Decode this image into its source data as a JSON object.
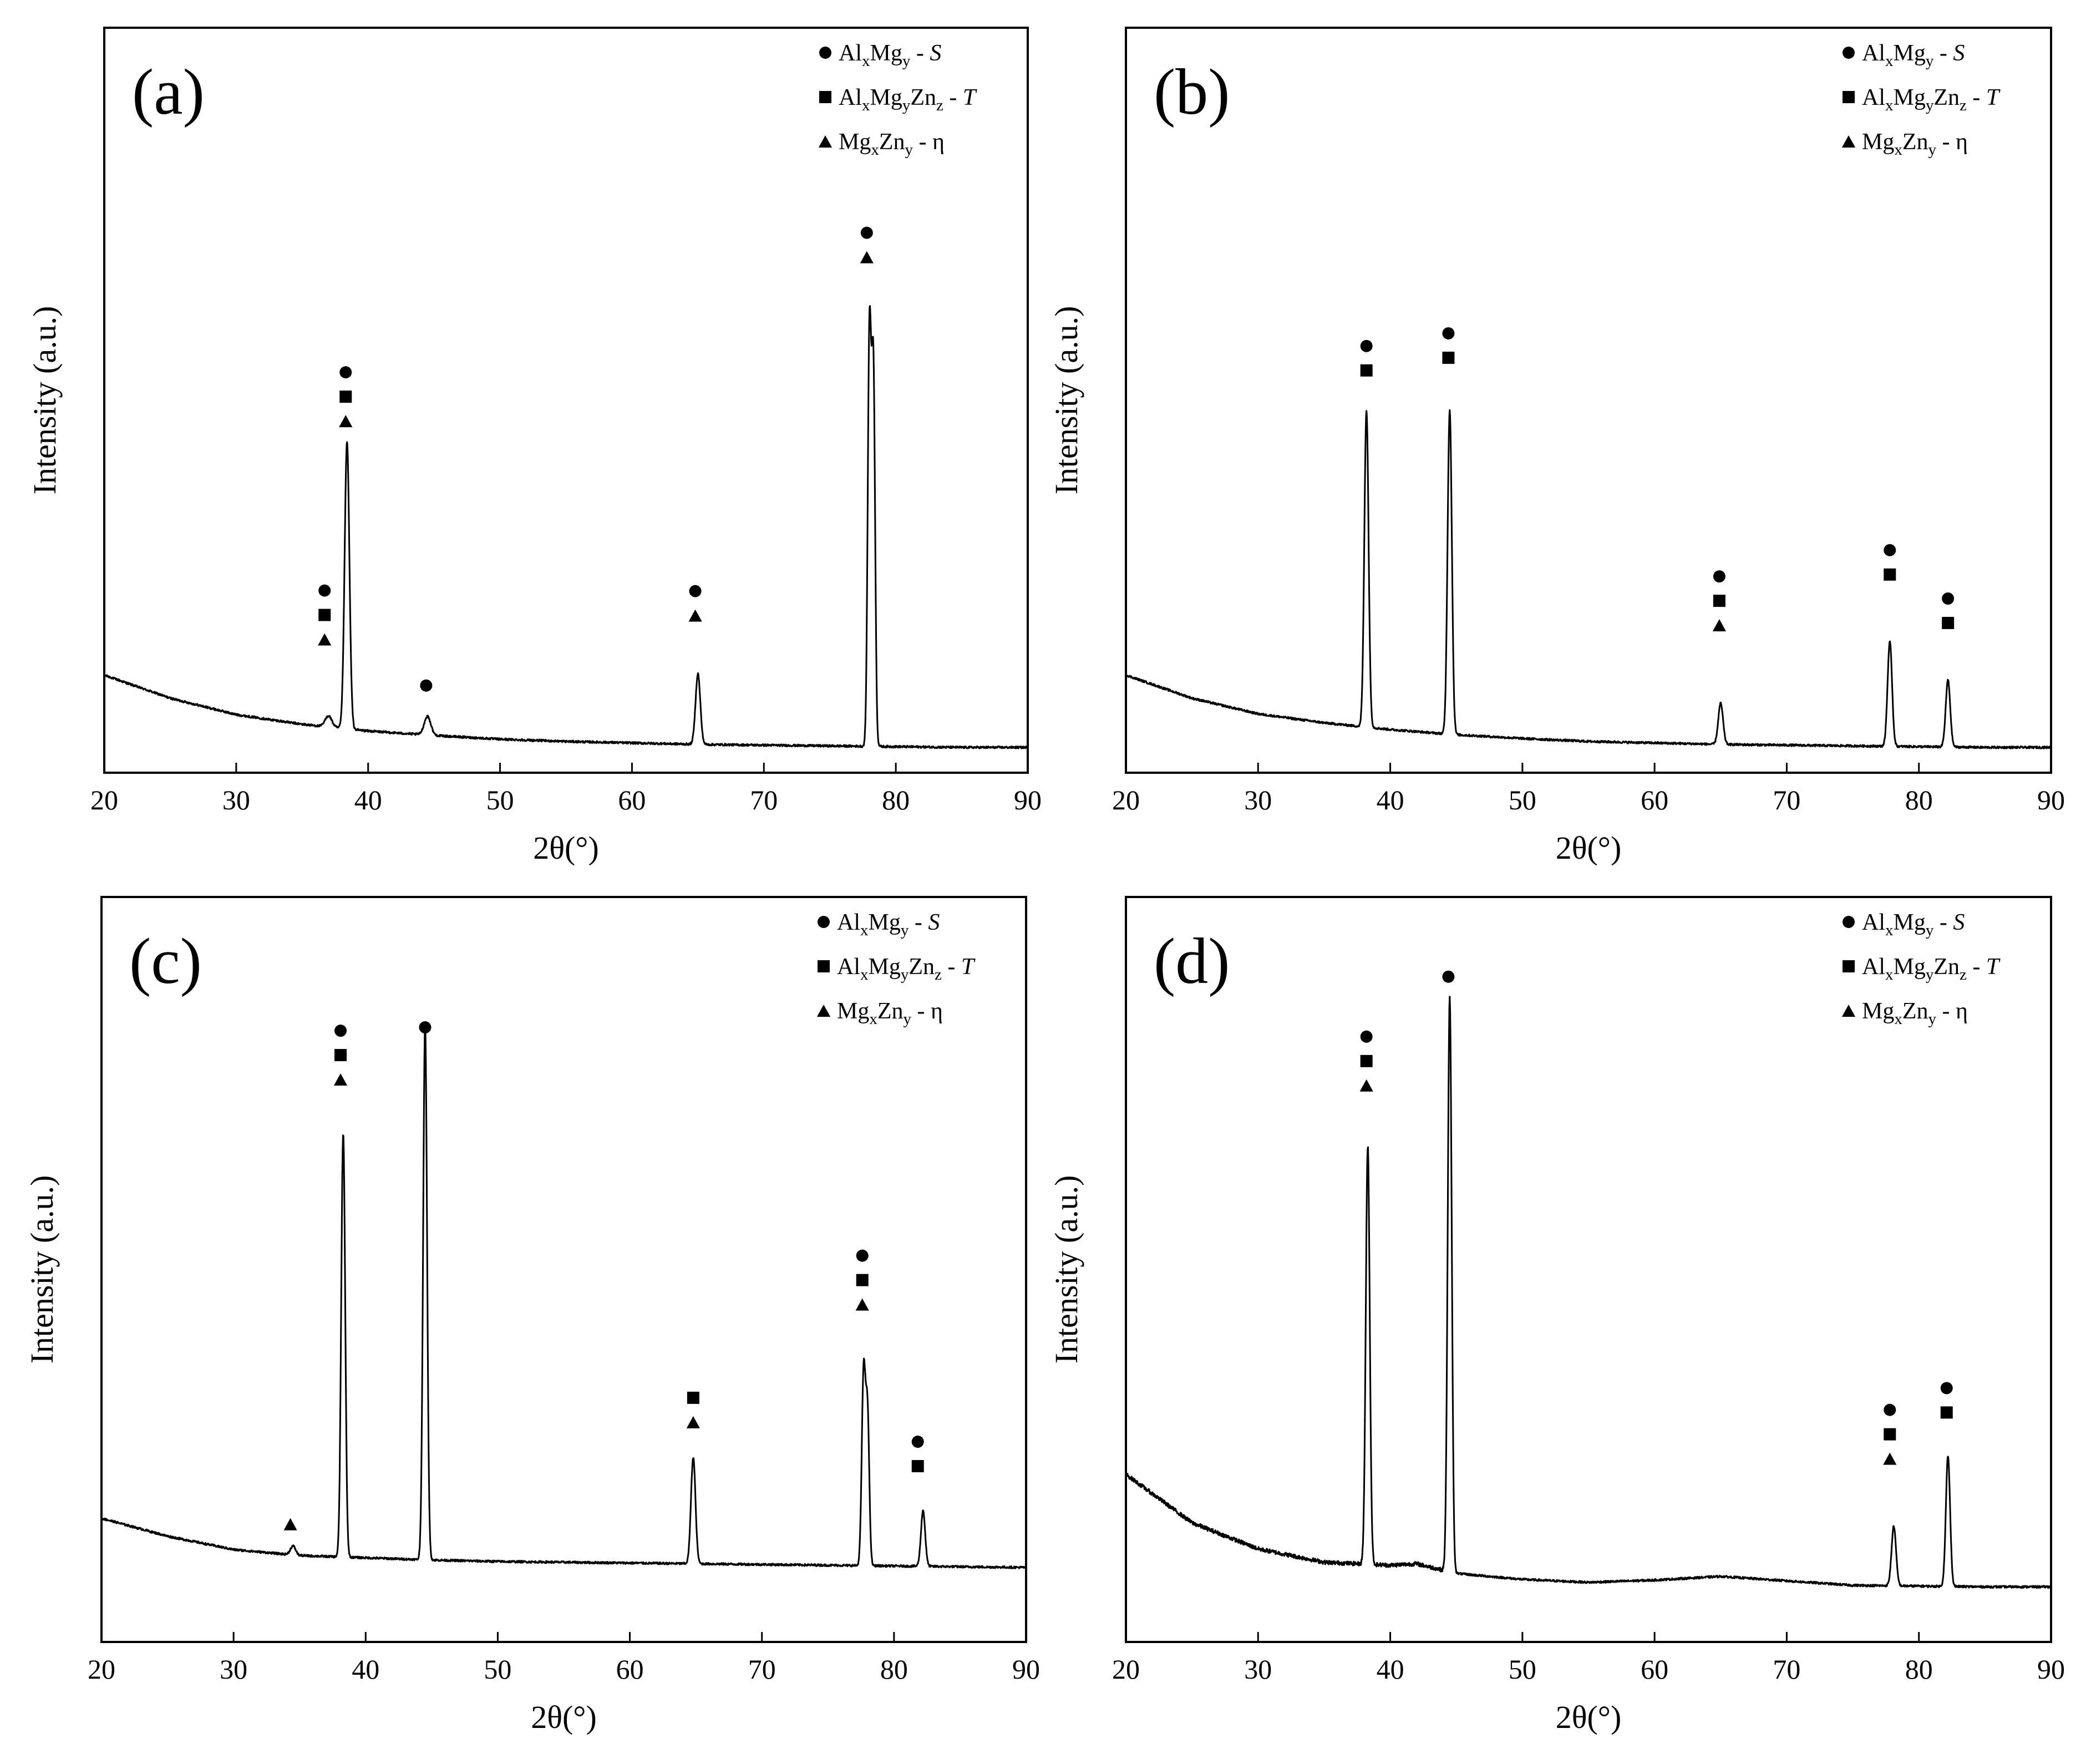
{
  "figure": {
    "legend": [
      {
        "marker": "circle",
        "parts": [
          [
            "Al",
            ""
          ],
          [
            "x",
            "sub"
          ],
          [
            "Mg",
            ""
          ],
          [
            "y",
            "sub"
          ],
          [
            " - ",
            ""
          ],
          [
            "S",
            "italic"
          ]
        ]
      },
      {
        "marker": "square",
        "parts": [
          [
            "Al",
            ""
          ],
          [
            "x",
            "sub"
          ],
          [
            "Mg",
            ""
          ],
          [
            "y",
            "sub"
          ],
          [
            "Zn",
            ""
          ],
          [
            "z",
            "sub"
          ],
          [
            " - ",
            ""
          ],
          [
            "T",
            "italic"
          ]
        ]
      },
      {
        "marker": "triangle",
        "parts": [
          [
            "Mg",
            ""
          ],
          [
            "x",
            "sub"
          ],
          [
            "Zn",
            ""
          ],
          [
            "y",
            "sub"
          ],
          [
            " - η",
            ""
          ]
        ]
      }
    ],
    "line_color": "#000000"
  },
  "chart_data": [
    {
      "type": "line",
      "panel_label": "(a)",
      "xlabel": "2θ(°)",
      "ylabel": "Intensity (a.u.)",
      "xlim": [
        20,
        90
      ],
      "ylim": [
        0,
        100
      ],
      "xticks": [
        20,
        30,
        40,
        50,
        60,
        70,
        80,
        90
      ],
      "yticks": [],
      "baseline": [
        [
          20,
          13.1
        ],
        [
          25,
          10.0
        ],
        [
          30,
          7.8
        ],
        [
          35,
          6.5
        ],
        [
          40,
          5.6
        ],
        [
          45,
          5.0
        ],
        [
          50,
          4.5
        ],
        [
          55,
          4.2
        ],
        [
          60,
          4.0
        ],
        [
          65,
          3.8
        ],
        [
          70,
          3.7
        ],
        [
          75,
          3.6
        ],
        [
          80,
          3.5
        ],
        [
          85,
          3.4
        ],
        [
          90,
          3.4
        ]
      ],
      "peaks": [
        {
          "x": 37.0,
          "height": 1.5,
          "width": 0.25
        },
        {
          "x": 38.4,
          "height": 38.5,
          "width": 0.18
        },
        {
          "x": 44.5,
          "height": 2.5,
          "width": 0.25
        },
        {
          "x": 65.0,
          "height": 9.5,
          "width": 0.18
        },
        {
          "x": 78.0,
          "height": 55.0,
          "width": 0.13
        },
        {
          "x": 78.3,
          "height": 50.0,
          "width": 0.13
        }
      ],
      "phase_markers": [
        {
          "x": 36.7,
          "y": 17.9,
          "markers": [
            "circle",
            "square",
            "triangle"
          ]
        },
        {
          "x": 38.3,
          "y": 47.2,
          "markers": [
            "circle",
            "square",
            "triangle"
          ]
        },
        {
          "x": 44.4,
          "y": 11.7,
          "markers": [
            "circle"
          ]
        },
        {
          "x": 64.8,
          "y": 21.1,
          "markers": [
            "circle",
            "triangle"
          ]
        },
        {
          "x": 77.8,
          "y": 69.2,
          "markers": [
            "circle",
            "triangle"
          ]
        }
      ]
    },
    {
      "type": "line",
      "panel_label": "(b)",
      "xlabel": "2θ(°)",
      "ylabel": "Intensity (a.u.)",
      "xlim": [
        20,
        90
      ],
      "ylim": [
        0,
        100
      ],
      "xticks": [
        20,
        30,
        40,
        50,
        60,
        70,
        80,
        90
      ],
      "yticks": [],
      "baseline": [
        [
          20,
          13.1
        ],
        [
          25,
          10.0
        ],
        [
          30,
          7.9
        ],
        [
          35,
          6.7
        ],
        [
          40,
          5.8
        ],
        [
          45,
          5.1
        ],
        [
          50,
          4.6
        ],
        [
          55,
          4.2
        ],
        [
          60,
          4.0
        ],
        [
          65,
          3.8
        ],
        [
          70,
          3.7
        ],
        [
          75,
          3.6
        ],
        [
          80,
          3.5
        ],
        [
          85,
          3.4
        ],
        [
          90,
          3.4
        ]
      ],
      "peaks": [
        {
          "x": 38.2,
          "height": 42.5,
          "width": 0.16
        },
        {
          "x": 44.5,
          "height": 43.5,
          "width": 0.16
        },
        {
          "x": 65.0,
          "height": 5.5,
          "width": 0.18
        },
        {
          "x": 77.8,
          "height": 14.0,
          "width": 0.17
        },
        {
          "x": 82.2,
          "height": 9.0,
          "width": 0.17
        }
      ],
      "phase_markers": [
        {
          "x": 38.2,
          "y": 54.0,
          "markers": [
            "circle",
            "square"
          ]
        },
        {
          "x": 44.4,
          "y": 55.7,
          "markers": [
            "circle",
            "square"
          ]
        },
        {
          "x": 64.9,
          "y": 19.8,
          "markers": [
            "circle",
            "square",
            "triangle"
          ]
        },
        {
          "x": 77.8,
          "y": 26.6,
          "markers": [
            "circle",
            "square"
          ]
        },
        {
          "x": 82.2,
          "y": 20.1,
          "markers": [
            "circle",
            "square"
          ]
        }
      ]
    },
    {
      "type": "line",
      "panel_label": "(c)",
      "xlabel": "2θ(°)",
      "ylabel": "Intensity (a.u.)",
      "xlim": [
        20,
        90
      ],
      "ylim": [
        0,
        100
      ],
      "xticks": [
        20,
        30,
        40,
        50,
        60,
        70,
        80,
        90
      ],
      "yticks": [],
      "baseline": [
        [
          20,
          16.6
        ],
        [
          25,
          14.2
        ],
        [
          30,
          12.4
        ],
        [
          35,
          11.6
        ],
        [
          40,
          11.3
        ],
        [
          45,
          11.0
        ],
        [
          50,
          10.8
        ],
        [
          55,
          10.7
        ],
        [
          60,
          10.6
        ],
        [
          65,
          10.5
        ],
        [
          70,
          10.4
        ],
        [
          75,
          10.3
        ],
        [
          80,
          10.2
        ],
        [
          85,
          10.1
        ],
        [
          90,
          10.0
        ]
      ],
      "peaks": [
        {
          "x": 34.5,
          "height": 1.2,
          "width": 0.2
        },
        {
          "x": 38.3,
          "height": 56.8,
          "width": 0.15
        },
        {
          "x": 44.5,
          "height": 72.0,
          "width": 0.15
        },
        {
          "x": 64.8,
          "height": 14.3,
          "width": 0.17
        },
        {
          "x": 77.7,
          "height": 26.0,
          "width": 0.14
        },
        {
          "x": 78.0,
          "height": 20.0,
          "width": 0.13
        },
        {
          "x": 82.2,
          "height": 7.5,
          "width": 0.16
        }
      ],
      "phase_markers": [
        {
          "x": 34.3,
          "y": 15.8,
          "markers": [
            "triangle"
          ]
        },
        {
          "x": 38.1,
          "y": 75.5,
          "markers": [
            "circle",
            "square",
            "triangle"
          ]
        },
        {
          "x": 44.5,
          "y": 82.5,
          "markers": [
            "circle"
          ]
        },
        {
          "x": 64.8,
          "y": 29.5,
          "markers": [
            "square",
            "triangle"
          ]
        },
        {
          "x": 77.6,
          "y": 45.3,
          "markers": [
            "circle",
            "square",
            "triangle"
          ]
        },
        {
          "x": 81.8,
          "y": 23.6,
          "markers": [
            "circle",
            "square"
          ]
        }
      ]
    },
    {
      "type": "line",
      "panel_label": "(d)",
      "xlabel": "2θ(°)",
      "ylabel": "Intensity (a.u.)",
      "xlim": [
        20,
        90
      ],
      "ylim": [
        0,
        100
      ],
      "xticks": [
        20,
        30,
        40,
        50,
        60,
        70,
        80,
        90
      ],
      "yticks": [],
      "baseline": [
        [
          20,
          22.5
        ],
        [
          25,
          16.0
        ],
        [
          30,
          12.5
        ],
        [
          35,
          10.7
        ],
        [
          40,
          10.3
        ],
        [
          42,
          10.5
        ],
        [
          45,
          9.2
        ],
        [
          50,
          8.4
        ],
        [
          55,
          8.0
        ],
        [
          60,
          8.3
        ],
        [
          65,
          8.8
        ],
        [
          70,
          8.2
        ],
        [
          75,
          7.6
        ],
        [
          80,
          7.5
        ],
        [
          85,
          7.4
        ],
        [
          90,
          7.4
        ]
      ],
      "peaks": [
        {
          "x": 38.3,
          "height": 56.2,
          "width": 0.15
        },
        {
          "x": 44.5,
          "height": 77.0,
          "width": 0.15
        },
        {
          "x": 78.1,
          "height": 8.0,
          "width": 0.17
        },
        {
          "x": 82.2,
          "height": 17.5,
          "width": 0.16
        }
      ],
      "phase_markers": [
        {
          "x": 38.2,
          "y": 74.7,
          "markers": [
            "circle",
            "square",
            "triangle"
          ]
        },
        {
          "x": 44.4,
          "y": 89.3,
          "markers": [
            "circle"
          ]
        },
        {
          "x": 77.8,
          "y": 24.6,
          "markers": [
            "circle",
            "square",
            "triangle"
          ]
        },
        {
          "x": 82.1,
          "y": 30.8,
          "markers": [
            "circle",
            "square"
          ]
        }
      ]
    }
  ]
}
